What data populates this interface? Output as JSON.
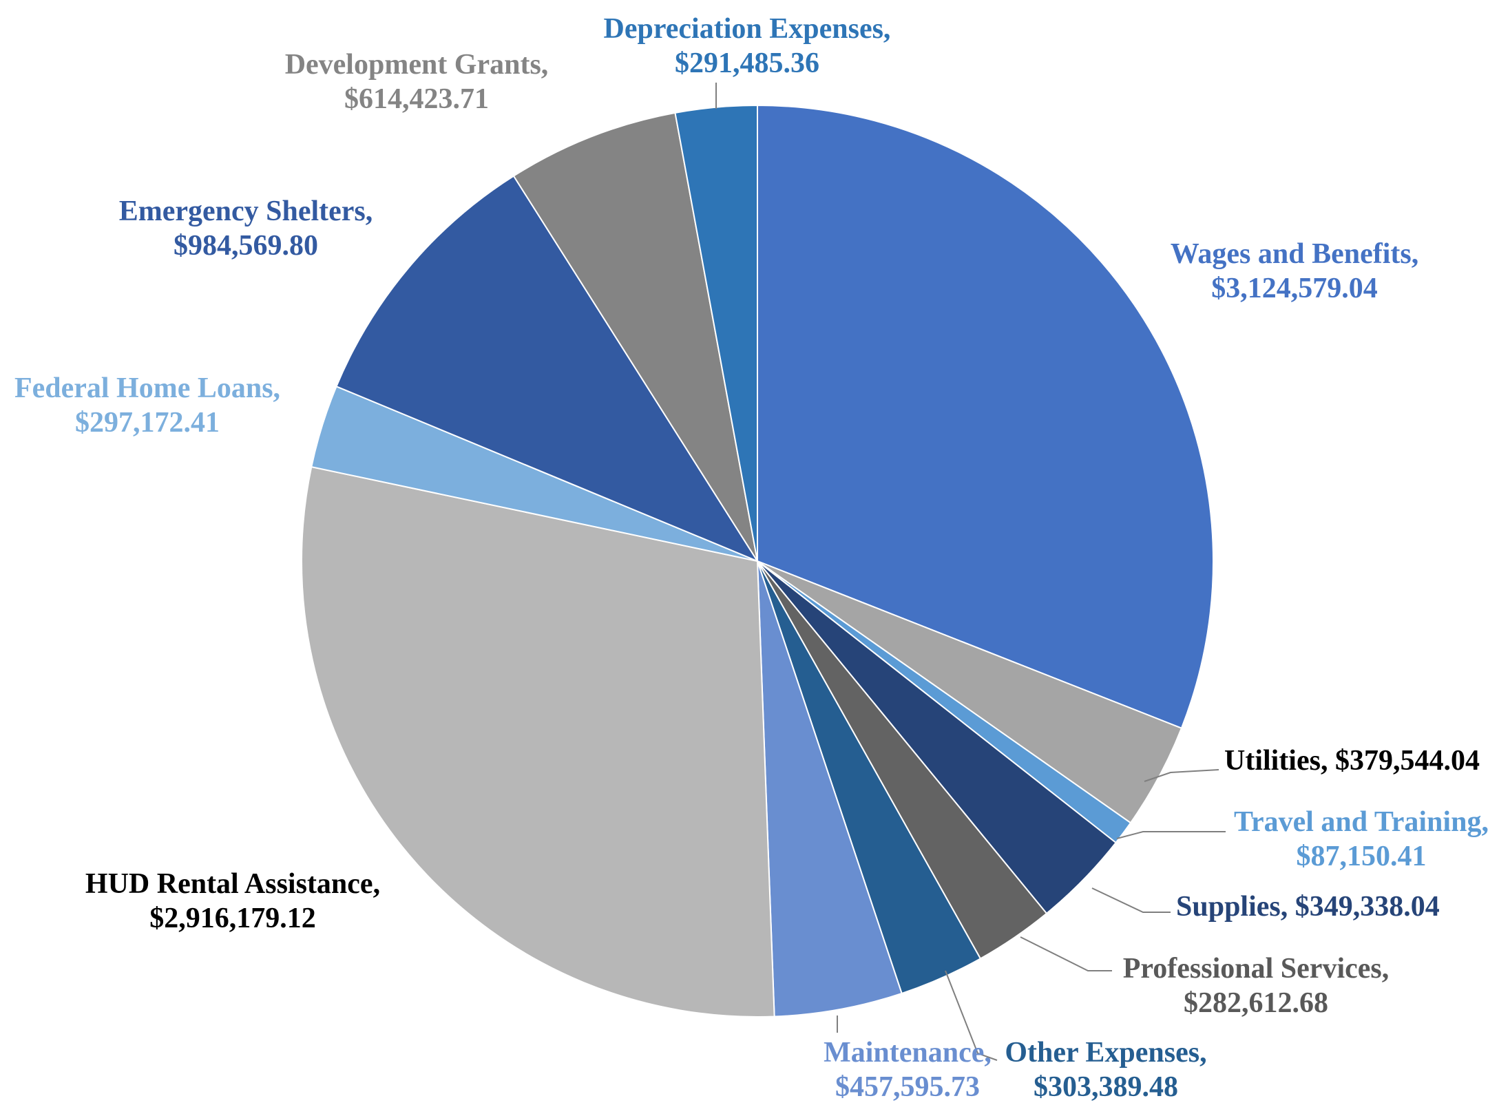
{
  "chart_data": {
    "type": "pie",
    "title": "",
    "start_angle_deg": 0,
    "direction": "clockwise",
    "slices": [
      {
        "name": "Wages and Benefits",
        "value": 3124579.04,
        "label_line1": "Wages and Benefits,",
        "label_line2": "$3,124,579.04",
        "color": "#4472C4",
        "label_color": "#4472C4"
      },
      {
        "name": "Utilities",
        "value": 379544.04,
        "label_line1": "Utilities,  $379,544.04",
        "label_line2": "",
        "color": "#A5A5A5",
        "label_color": "#000000"
      },
      {
        "name": "Travel and Training",
        "value": 87150.41,
        "label_line1": "Travel and Training,",
        "label_line2": "$87,150.41",
        "color": "#5B9BD5",
        "label_color": "#5B9BD5"
      },
      {
        "name": "Supplies",
        "value": 349338.04,
        "label_line1": "Supplies,  $349,338.04",
        "label_line2": "",
        "color": "#264478",
        "label_color": "#264478"
      },
      {
        "name": "Professional Services",
        "value": 282612.68,
        "label_line1": "Professional Services,",
        "label_line2": "$282,612.68",
        "color": "#636363",
        "label_color": "#595959"
      },
      {
        "name": "Other Expenses",
        "value": 303389.48,
        "label_line1": "Other Expenses,",
        "label_line2": "$303,389.48",
        "color": "#255E91",
        "label_color": "#255E91"
      },
      {
        "name": "Maintenance",
        "value": 457595.73,
        "label_line1": "Maintenance,",
        "label_line2": "$457,595.73",
        "color": "#698ED0",
        "label_color": "#698ED0"
      },
      {
        "name": "HUD Rental Assistance",
        "value": 2916179.12,
        "label_line1": "HUD Rental Assistance,",
        "label_line2": "$2,916,179.12",
        "color": "#B7B7B7",
        "label_color": "#000000"
      },
      {
        "name": "Federal Home Loans",
        "value": 297172.41,
        "label_line1": "Federal Home Loans,",
        "label_line2": "$297,172.41",
        "color": "#7CAFDD",
        "label_color": "#7CAFDD"
      },
      {
        "name": "Emergency Shelters",
        "value": 984569.8,
        "label_line1": "Emergency Shelters,",
        "label_line2": "$984,569.80",
        "color": "#335AA1",
        "label_color": "#335AA1"
      },
      {
        "name": "Development Grants",
        "value": 614423.71,
        "label_line1": "Development Grants,",
        "label_line2": "$614,423.71",
        "color": "#848484",
        "label_color": "#848484"
      },
      {
        "name": "Depreciation Expenses",
        "value": 291485.36,
        "label_line1": "Depreciation Expenses,",
        "label_line2": "$291,485.36",
        "color": "#2E75B6",
        "label_color": "#2E75B6"
      }
    ]
  }
}
